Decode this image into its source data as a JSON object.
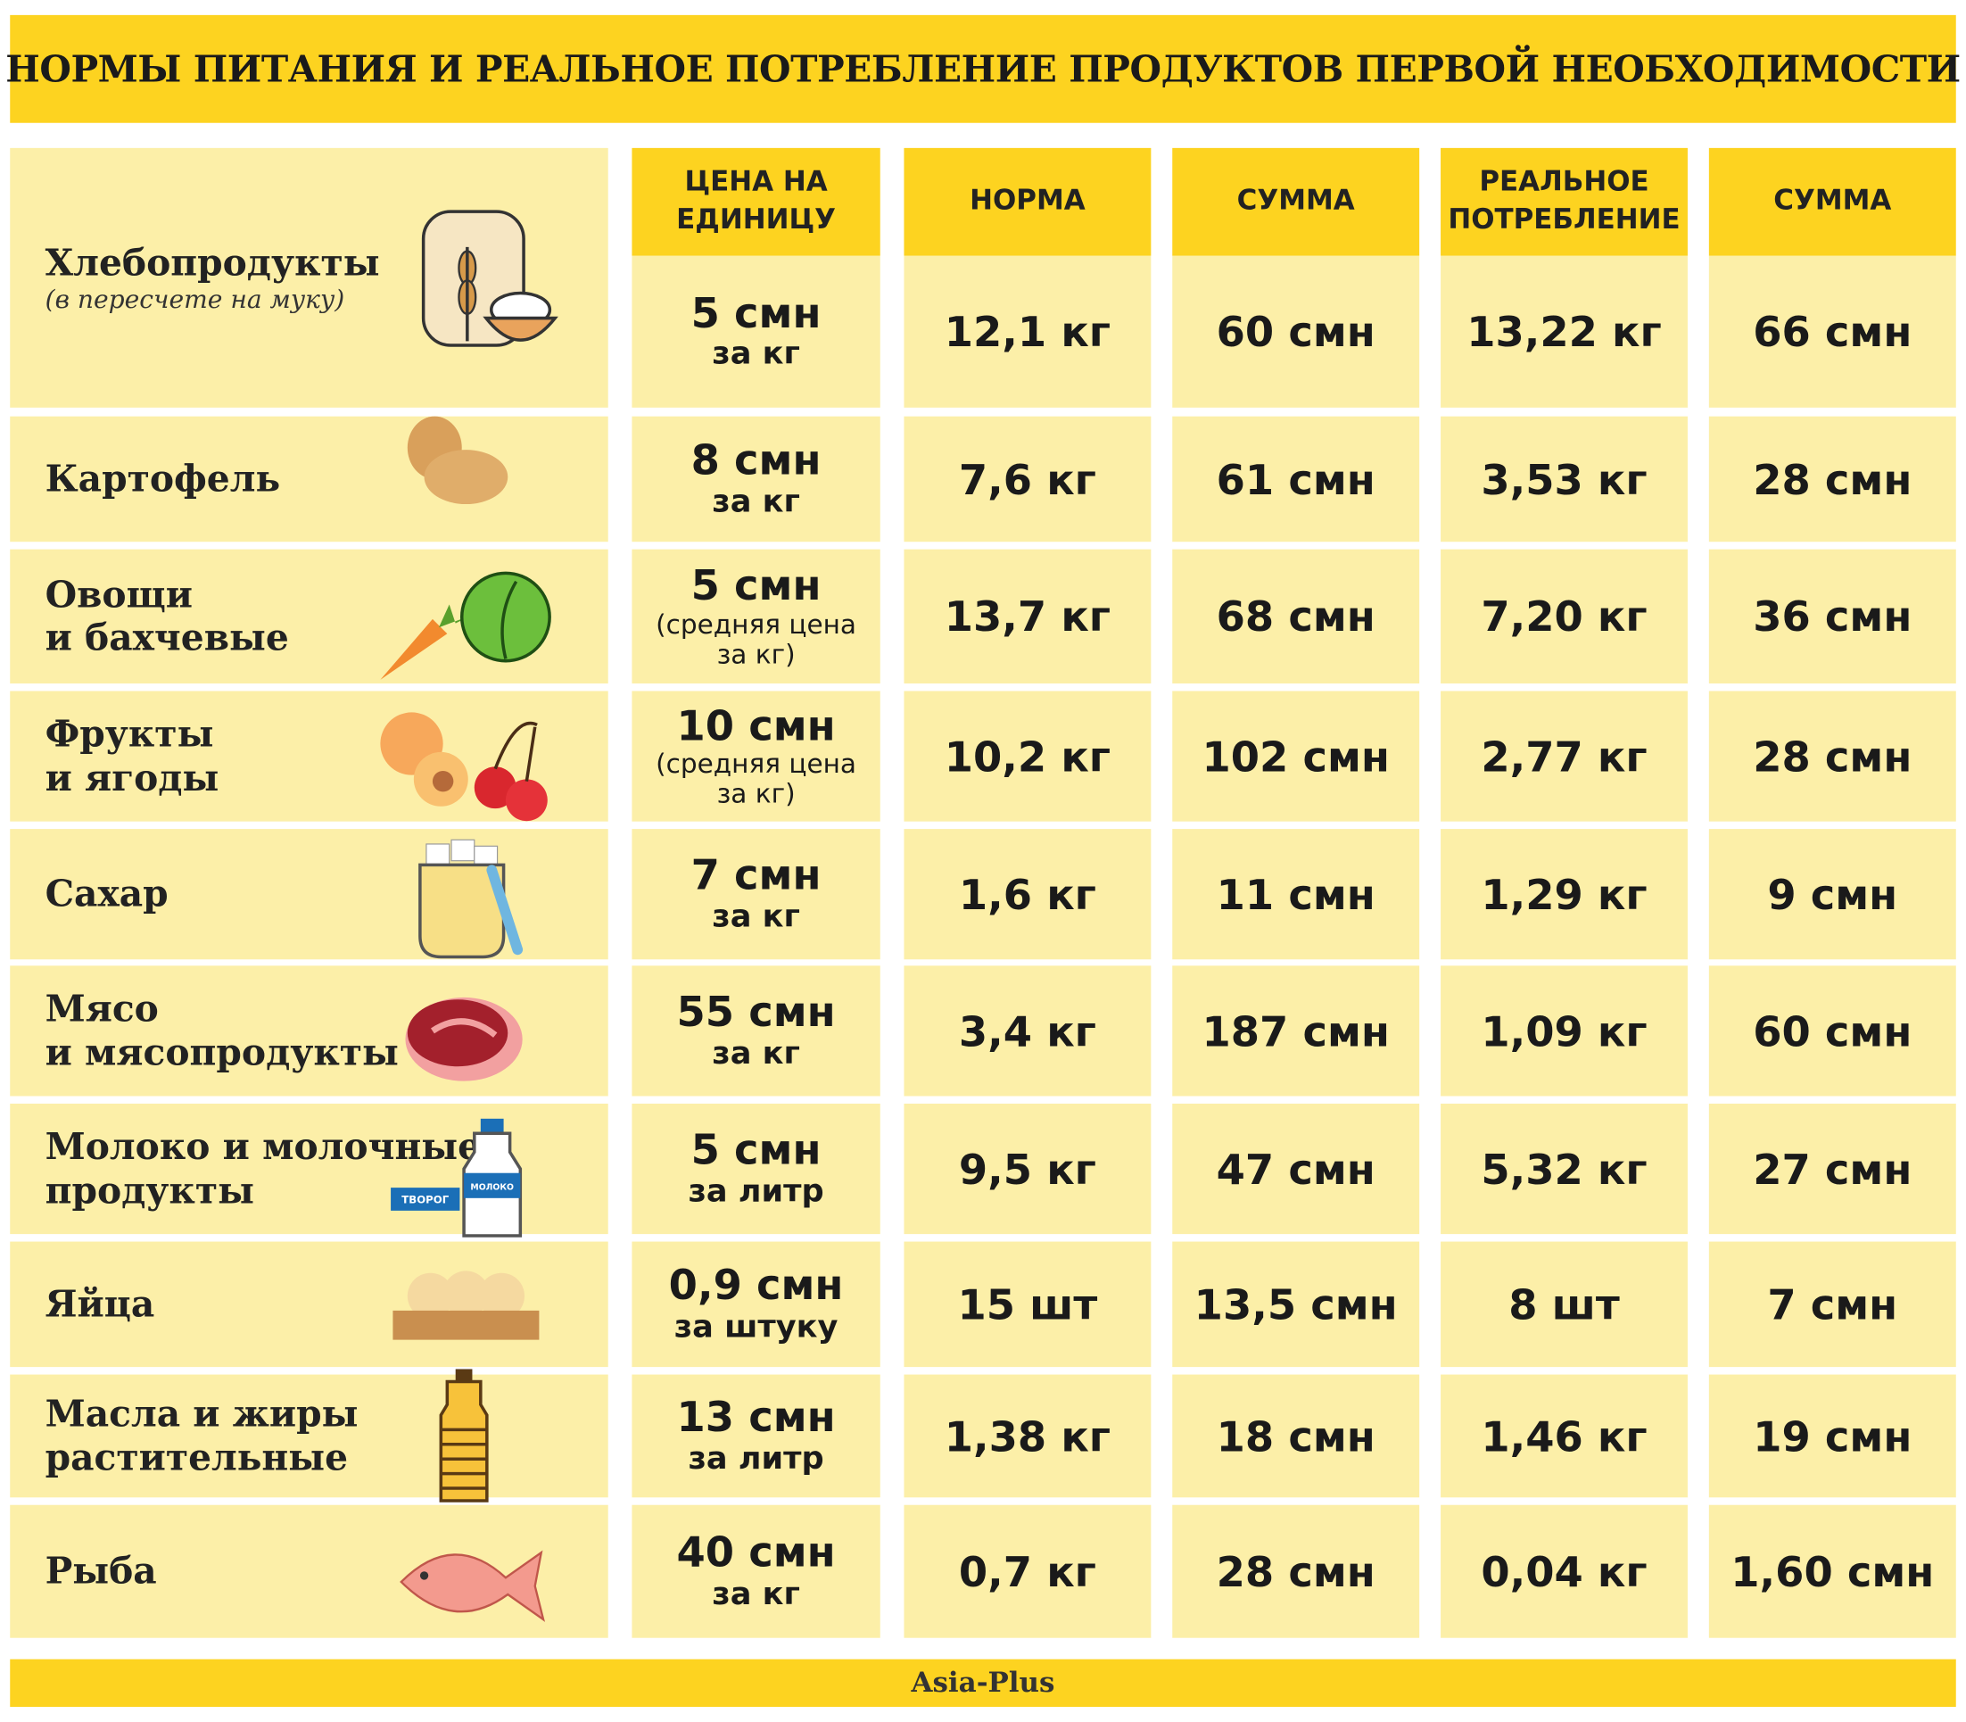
{
  "header": {
    "title": "НОРМЫ ПИТАНИЯ И РЕАЛЬНОЕ ПОТРЕБЛЕНИЕ ПРОДУКТОВ ПЕРВОЙ НЕОБХОДИМОСТИ"
  },
  "table": {
    "columns": [
      [
        "ЦЕНА НА",
        "ЕДИНИЦУ"
      ],
      [
        "НОРМА"
      ],
      [
        "СУММА"
      ],
      [
        "РЕАЛЬНОЕ",
        "ПОТРЕБЛЕНИЕ"
      ],
      [
        "СУММА"
      ]
    ],
    "rows": [
      {
        "name": [
          "Хлебопродукты"
        ],
        "note": "(в пересчете на муку)",
        "price": "5 смн",
        "unit": [
          "за кг"
        ],
        "norm": "12,1 кг",
        "norm_sum": "60 смн",
        "real": "13,22 кг",
        "real_sum": "66 смн"
      },
      {
        "name": [
          "Картофель"
        ],
        "price": "8 смн",
        "unit": [
          "за кг"
        ],
        "norm": "7,6 кг",
        "norm_sum": "61 смн",
        "real": "3,53 кг",
        "real_sum": "28 смн"
      },
      {
        "name": [
          "Овощи",
          "и бахчевые"
        ],
        "price": "5 смн",
        "unit_note": [
          "(средняя цена",
          "за кг)"
        ],
        "norm": "13,7 кг",
        "norm_sum": "68 смн",
        "real": "7,20 кг",
        "real_sum": "36 смн"
      },
      {
        "name": [
          "Фрукты",
          "и ягоды"
        ],
        "price": "10 смн",
        "unit_note": [
          "(средняя цена",
          "за кг)"
        ],
        "norm": "10,2 кг",
        "norm_sum": "102 смн",
        "real": "2,77 кг",
        "real_sum": "28 смн"
      },
      {
        "name": [
          "Сахар"
        ],
        "price": "7 смн",
        "unit": [
          "за кг"
        ],
        "norm": "1,6 кг",
        "norm_sum": "11 смн",
        "real": "1,29 кг",
        "real_sum": "9 смн"
      },
      {
        "name": [
          "Мясо",
          "и мясопродукты"
        ],
        "price": "55 смн",
        "unit": [
          "за кг"
        ],
        "norm": "3,4 кг",
        "norm_sum": "187 смн",
        "real": "1,09 кг",
        "real_sum": "60 смн"
      },
      {
        "name": [
          "Молоко и молочные",
          "продукты"
        ],
        "icon_labels": [
          "ТВОРОГ",
          "МОЛОКО"
        ],
        "price": "5 смн",
        "unit": [
          "за литр"
        ],
        "norm": "9,5 кг",
        "norm_sum": "47 смн",
        "real": "5,32 кг",
        "real_sum": "27 смн"
      },
      {
        "name": [
          "Яйца"
        ],
        "price": "0,9 смн",
        "unit": [
          "за штуку"
        ],
        "norm": "15 шт",
        "norm_sum": "13,5 смн",
        "real": "8 шт",
        "real_sum": "7 смн"
      },
      {
        "name": [
          "Масла и жиры",
          "растительные"
        ],
        "price": "13 смн",
        "unit": [
          "за литр"
        ],
        "norm": "1,38 кг",
        "norm_sum": "18 смн",
        "real": "1,46 кг",
        "real_sum": "19 смн"
      },
      {
        "name": [
          "Рыба"
        ],
        "price": "40 смн",
        "unit": [
          "за кг"
        ],
        "norm": "0,7 кг",
        "norm_sum": "28 смн",
        "real": "0,04 кг",
        "real_sum": "1,60 смн"
      }
    ]
  },
  "footer": {
    "source": "Asia-Plus"
  }
}
